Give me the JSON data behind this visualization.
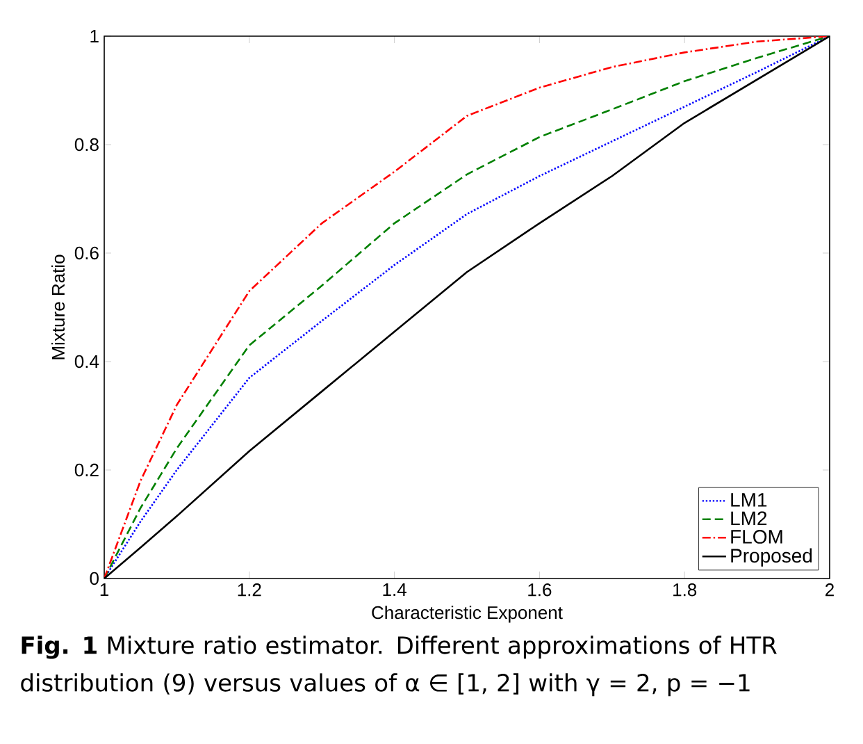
{
  "chart_data": {
    "type": "line",
    "xlabel": "Characteristic Exponent",
    "ylabel": "Mixture Ratio",
    "annotations": [
      "**Fig. 1** Mixture ratio estimator. Different approximations of HTR distribution (9) versus values of α ∈ [1, 2] with γ = 2, p = −1"
    ],
    "x": [
      1,
      1.05,
      1.1,
      1.2,
      1.3,
      1.4,
      1.5,
      1.6,
      1.7,
      1.8,
      1.9,
      2
    ],
    "series": [
      {
        "name": "LM1",
        "color": "#0000ff",
        "line_style": "dotted",
        "values": [
          0,
          0.105,
          0.2,
          0.37,
          0.475,
          0.578,
          0.672,
          0.742,
          0.806,
          0.87,
          0.934,
          1
        ]
      },
      {
        "name": "LM2",
        "color": "#008000",
        "line_style": "dashed",
        "values": [
          0,
          0.13,
          0.24,
          0.43,
          0.54,
          0.655,
          0.745,
          0.814,
          0.865,
          0.917,
          0.96,
          1
        ]
      },
      {
        "name": "FLOM",
        "color": "#ff0000",
        "line_style": "dashdot",
        "values": [
          0,
          0.18,
          0.32,
          0.53,
          0.655,
          0.75,
          0.853,
          0.905,
          0.943,
          0.97,
          0.99,
          1
        ]
      },
      {
        "name": "Proposed",
        "color": "#000000",
        "line_style": "solid",
        "values": [
          0,
          0.057,
          0.115,
          0.235,
          0.345,
          0.455,
          0.565,
          0.655,
          0.742,
          0.84,
          0.92,
          1
        ]
      }
    ],
    "xlim": [
      1,
      2
    ],
    "ylim": [
      0,
      1
    ],
    "xticks": [
      1,
      1.2,
      1.4,
      1.6,
      1.8,
      2
    ],
    "yticks": [
      0,
      0.2,
      0.4,
      0.6,
      0.8,
      1
    ],
    "grid": false,
    "legend": "bottom right",
    "marker": "none"
  }
}
